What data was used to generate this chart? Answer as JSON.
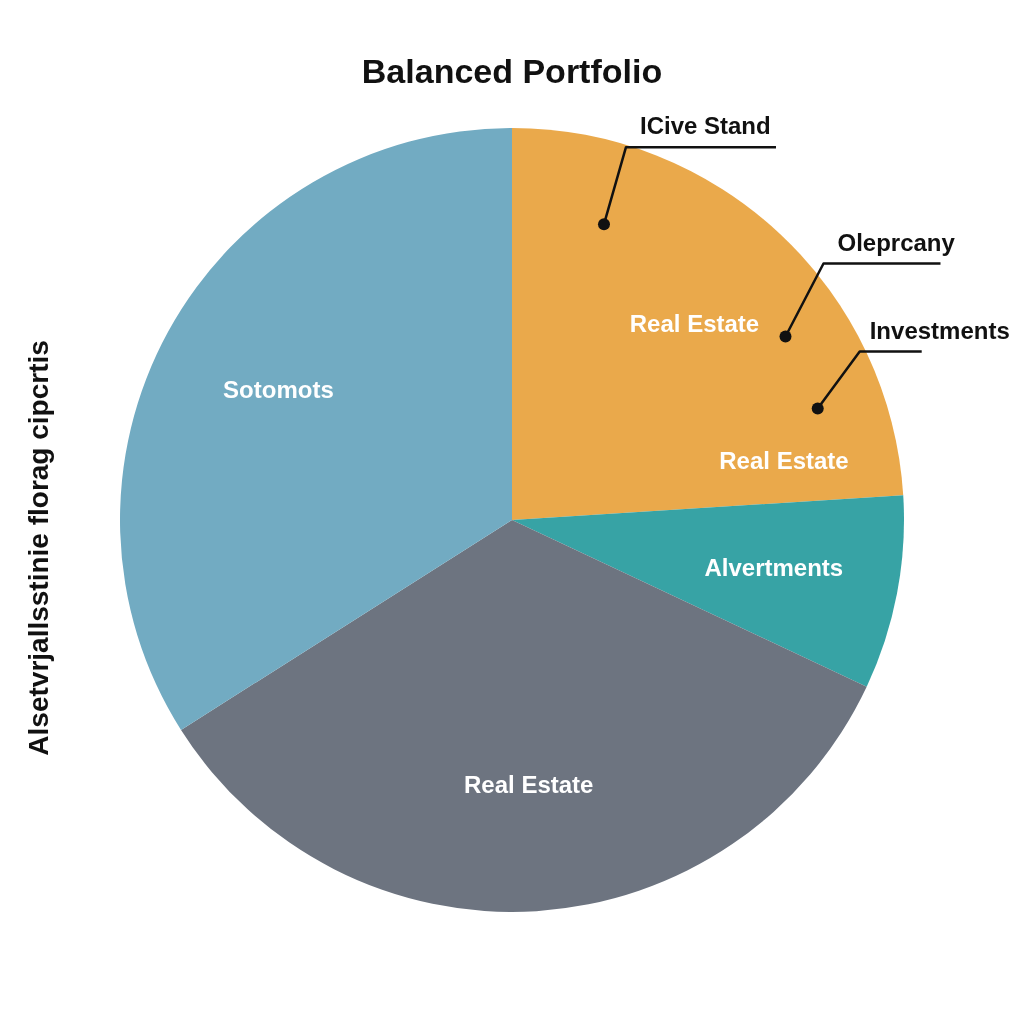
{
  "chart_data": {
    "type": "pie",
    "title": "Balanced Portfolio",
    "ylabel": "Alsetvrjallsstinie florag cipcrtis",
    "categories": [
      "Real Estate",
      "Alvertments",
      "Real Estate",
      "Sotomots"
    ],
    "values": [
      24,
      8,
      34,
      34
    ],
    "colors": [
      "#eaa94b",
      "#37a3a5",
      "#6d7480",
      "#72abc2"
    ],
    "annotations": [
      "ICive Stand",
      "Oleprcany",
      "Investments",
      "Real Estate"
    ]
  }
}
